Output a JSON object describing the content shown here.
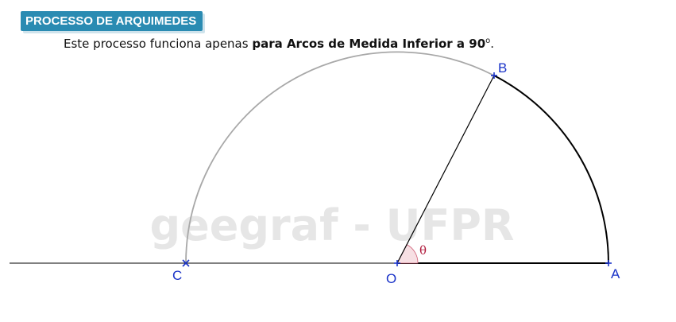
{
  "header": {
    "title": "PROCESSO DE ARQUIMEDES",
    "subtitle_prefix": "Este processo funciona apenas ",
    "subtitle_bold": "para Arcos de Medida Inferior a 90",
    "subtitle_degree": "o",
    "subtitle_suffix": "."
  },
  "diagram": {
    "watermark": "geegraf - UFPR",
    "points": {
      "O": "O",
      "A": "A",
      "B": "B",
      "C": "C"
    },
    "angle_label": "θ"
  },
  "colors": {
    "badge": "#2a8bb2",
    "point_blue": "#1a33c8",
    "angle_red": "#b01a3c",
    "angle_fill": "#f7dfe3",
    "arc_gray": "#a8a8a8",
    "line_black": "#000000"
  }
}
